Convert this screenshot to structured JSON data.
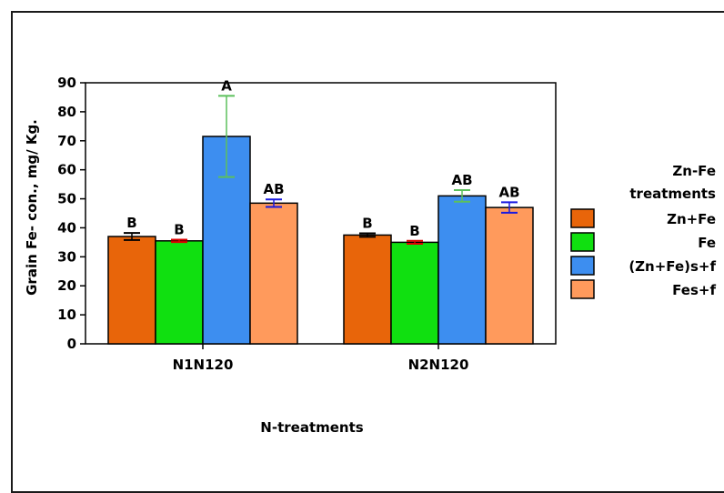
{
  "chart_data": {
    "type": "bar",
    "categories": [
      "N1N120",
      "N2N120"
    ],
    "xlabel": "N-treatments",
    "ylabel": "Grain Fe- con., mg/ Kg.",
    "ylim": [
      0,
      90
    ],
    "yticks": [
      0,
      10,
      20,
      30,
      40,
      50,
      60,
      70,
      80,
      90
    ],
    "grid": false,
    "legend_title": [
      "Zn-Fe",
      "treatments"
    ],
    "legend_position": "right",
    "series": [
      {
        "name": "Zn+Fe",
        "color": "#e8650a",
        "values": [
          37,
          37.5
        ],
        "errors": [
          1.2,
          0.6
        ],
        "error_color": "#000000",
        "labels": [
          "B",
          "B"
        ]
      },
      {
        "name": "Fe",
        "color": "#10e010",
        "values": [
          35.5,
          35
        ],
        "errors": [
          0.4,
          0.5
        ],
        "error_color": "#e00000",
        "labels": [
          "B",
          "B"
        ]
      },
      {
        "name": "(Zn+Fe)s+f",
        "color": "#3d8ef0",
        "values": [
          71.5,
          51
        ],
        "errors": [
          14,
          2
        ],
        "error_color": "#5cc05c",
        "labels": [
          "A",
          "AB"
        ]
      },
      {
        "name": "Fes+f",
        "color": "#ff9a5c",
        "values": [
          48.5,
          47
        ],
        "errors": [
          1.3,
          1.8
        ],
        "error_color": "#1a1ae0",
        "labels": [
          "AB",
          "AB"
        ]
      }
    ]
  }
}
